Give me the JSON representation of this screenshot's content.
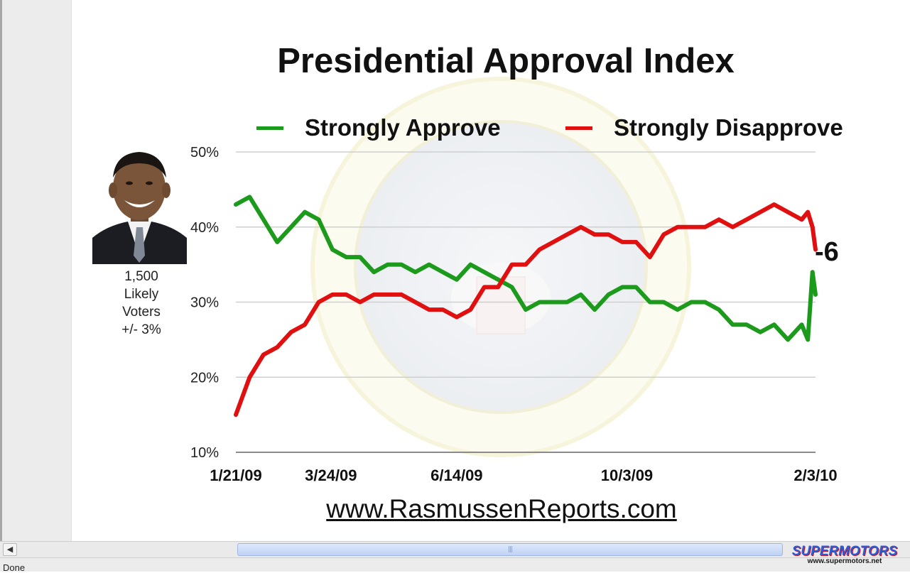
{
  "chart_data": {
    "type": "line",
    "title": "Presidential Approval Index",
    "xlabel": "",
    "ylabel": "",
    "ylim": [
      10,
      50
    ],
    "y_ticks": [
      "10%",
      "20%",
      "30%",
      "40%",
      "50%"
    ],
    "y_tick_values": [
      10,
      20,
      30,
      40,
      50
    ],
    "x_tick_labels": [
      "1/21/09",
      "3/24/09",
      "6/14/09",
      "10/3/09",
      "2/3/10"
    ],
    "x_tick_dates": [
      "2009-01-21",
      "2009-03-24",
      "2009-06-14",
      "2009-10-03",
      "2010-02-03"
    ],
    "x_range": [
      "2009-01-21",
      "2010-02-03"
    ],
    "grid": true,
    "legend_position": "top",
    "annotation": "-6",
    "series": [
      {
        "name": "Strongly Approve",
        "color": "#1c9a1c",
        "x": [
          "2009-01-21",
          "2009-01-30",
          "2009-02-08",
          "2009-02-17",
          "2009-02-26",
          "2009-03-07",
          "2009-03-16",
          "2009-03-25",
          "2009-04-03",
          "2009-04-12",
          "2009-04-21",
          "2009-04-30",
          "2009-05-09",
          "2009-05-18",
          "2009-05-27",
          "2009-06-05",
          "2009-06-14",
          "2009-06-23",
          "2009-07-02",
          "2009-07-11",
          "2009-07-20",
          "2009-07-29",
          "2009-08-07",
          "2009-08-16",
          "2009-08-25",
          "2009-09-03",
          "2009-09-12",
          "2009-09-21",
          "2009-09-30",
          "2009-10-09",
          "2009-10-18",
          "2009-10-27",
          "2009-11-05",
          "2009-11-14",
          "2009-11-23",
          "2009-12-02",
          "2009-12-11",
          "2009-12-20",
          "2009-12-29",
          "2010-01-07",
          "2010-01-16",
          "2010-01-25",
          "2010-01-29",
          "2010-02-01",
          "2010-02-03"
        ],
        "values": [
          43,
          44,
          41,
          38,
          40,
          42,
          41,
          37,
          36,
          36,
          34,
          35,
          35,
          34,
          35,
          34,
          33,
          35,
          34,
          33,
          32,
          29,
          30,
          30,
          30,
          31,
          29,
          31,
          32,
          32,
          30,
          30,
          29,
          30,
          30,
          29,
          27,
          27,
          26,
          27,
          25,
          27,
          25,
          34,
          31
        ]
      },
      {
        "name": "Strongly Disapprove",
        "color": "#e01010",
        "x": [
          "2009-01-21",
          "2009-01-30",
          "2009-02-08",
          "2009-02-17",
          "2009-02-26",
          "2009-03-07",
          "2009-03-16",
          "2009-03-25",
          "2009-04-03",
          "2009-04-12",
          "2009-04-21",
          "2009-04-30",
          "2009-05-09",
          "2009-05-18",
          "2009-05-27",
          "2009-06-05",
          "2009-06-14",
          "2009-06-23",
          "2009-07-02",
          "2009-07-11",
          "2009-07-20",
          "2009-07-29",
          "2009-08-07",
          "2009-08-16",
          "2009-08-25",
          "2009-09-03",
          "2009-09-12",
          "2009-09-21",
          "2009-09-30",
          "2009-10-09",
          "2009-10-18",
          "2009-10-27",
          "2009-11-05",
          "2009-11-14",
          "2009-11-23",
          "2009-12-02",
          "2009-12-11",
          "2009-12-20",
          "2009-12-29",
          "2010-01-07",
          "2010-01-16",
          "2010-01-25",
          "2010-01-29",
          "2010-02-01",
          "2010-02-03"
        ],
        "values": [
          15,
          20,
          23,
          24,
          26,
          27,
          30,
          31,
          31,
          30,
          31,
          31,
          31,
          30,
          29,
          29,
          28,
          29,
          32,
          32,
          35,
          35,
          37,
          38,
          39,
          40,
          39,
          39,
          38,
          38,
          36,
          39,
          40,
          40,
          40,
          41,
          40,
          41,
          42,
          43,
          42,
          41,
          42,
          40,
          37
        ]
      }
    ]
  },
  "sidebar": {
    "line1": "1,500",
    "line2": "Likely",
    "line3": "Voters",
    "line4": "+/- 3%"
  },
  "source_url": "www.RasmussenReports.com",
  "status_text": "Done",
  "watermark": {
    "brand": "SUPERMOTORS",
    "url": "www.supermotors.net"
  }
}
